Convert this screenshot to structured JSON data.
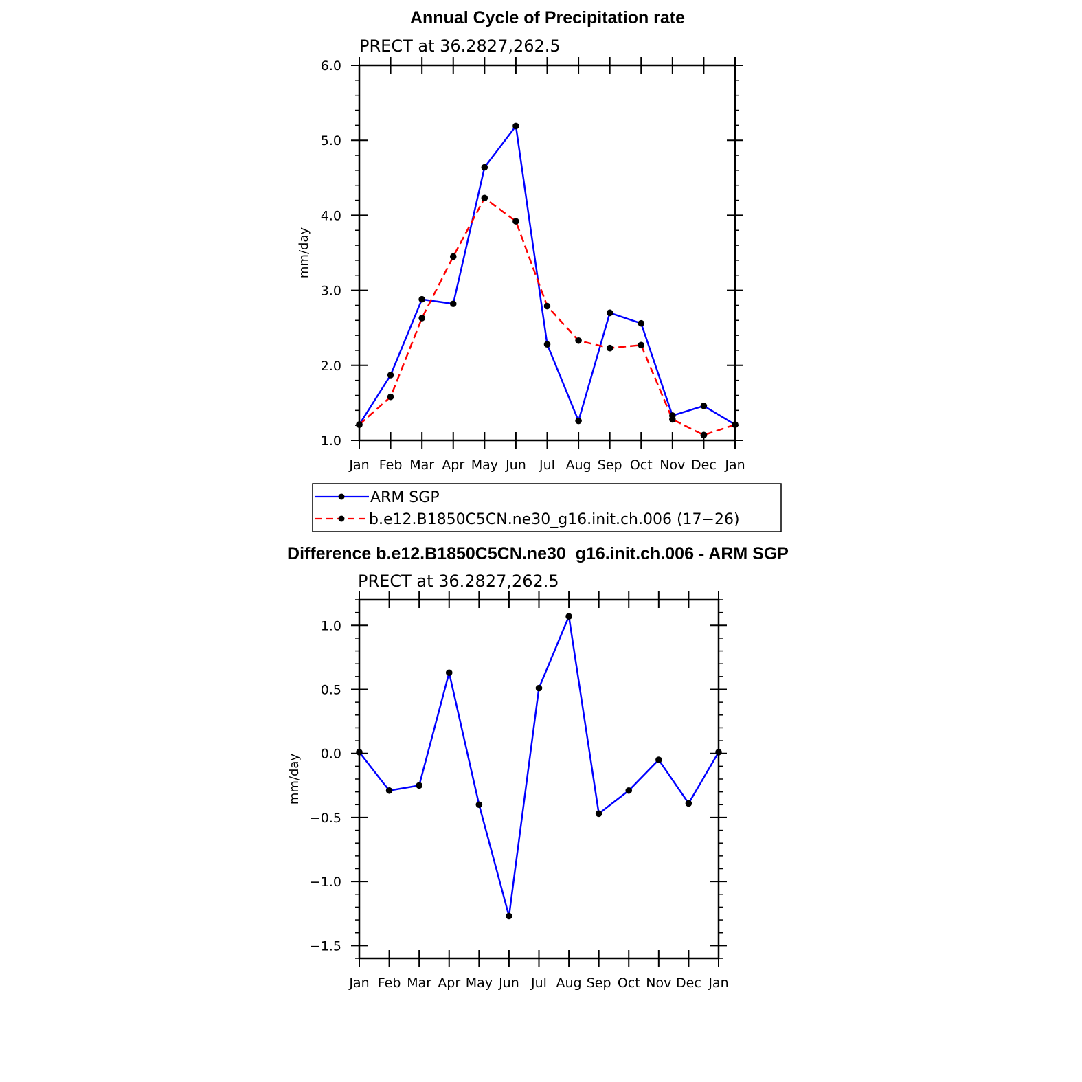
{
  "colors": {
    "obs": "#0000ff",
    "model": "#ff0000",
    "marker": "#000000"
  },
  "chart_data": [
    {
      "type": "line",
      "title": "Annual Cycle of Precipitation rate",
      "subtitle": "PRECT at 36.2827,262.5",
      "ylabel": "mm/day",
      "ylim": [
        1.0,
        6.0
      ],
      "yticks": [
        "6.0",
        "5.0",
        "4.0",
        "3.0",
        "2.0",
        "1.0"
      ],
      "categories": [
        "Jan",
        "Feb",
        "Mar",
        "Apr",
        "May",
        "Jun",
        "Jul",
        "Aug",
        "Sep",
        "Oct",
        "Nov",
        "Dec",
        "Jan"
      ],
      "series": [
        {
          "name": "ARM SGP",
          "style": "solid",
          "color": "#0000ff",
          "values": [
            1.21,
            1.87,
            2.88,
            2.82,
            4.64,
            5.19,
            2.28,
            1.26,
            2.7,
            2.56,
            1.33,
            1.46,
            1.21
          ]
        },
        {
          "name": "b.e12.B1850C5CN.ne30_g16.init.ch.006 (17−26)",
          "style": "dashed",
          "color": "#ff0000",
          "values": [
            1.21,
            1.58,
            2.63,
            3.45,
            4.23,
            3.92,
            2.79,
            2.33,
            2.23,
            2.27,
            1.28,
            1.07,
            1.21
          ]
        }
      ],
      "legend_position": "bottom"
    },
    {
      "type": "line",
      "title": "Difference b.e12.B1850C5CN.ne30_g16.init.ch.006 - ARM SGP",
      "subtitle": "PRECT at 36.2827,262.5",
      "ylabel": "mm/day",
      "ylim": [
        -1.6,
        1.2
      ],
      "yticks": [
        "1.0",
        "0.5",
        "0.0",
        "−0.5",
        "−1.0",
        "−1.5"
      ],
      "categories": [
        "Jan",
        "Feb",
        "Mar",
        "Apr",
        "May",
        "Jun",
        "Jul",
        "Aug",
        "Sep",
        "Oct",
        "Nov",
        "Dec",
        "Jan"
      ],
      "series": [
        {
          "style": "solid",
          "color": "#0000ff",
          "values": [
            0.01,
            -0.29,
            -0.25,
            0.63,
            -0.4,
            -1.27,
            0.51,
            1.07,
            -0.47,
            -0.29,
            -0.05,
            -0.39,
            0.01
          ]
        }
      ]
    }
  ]
}
